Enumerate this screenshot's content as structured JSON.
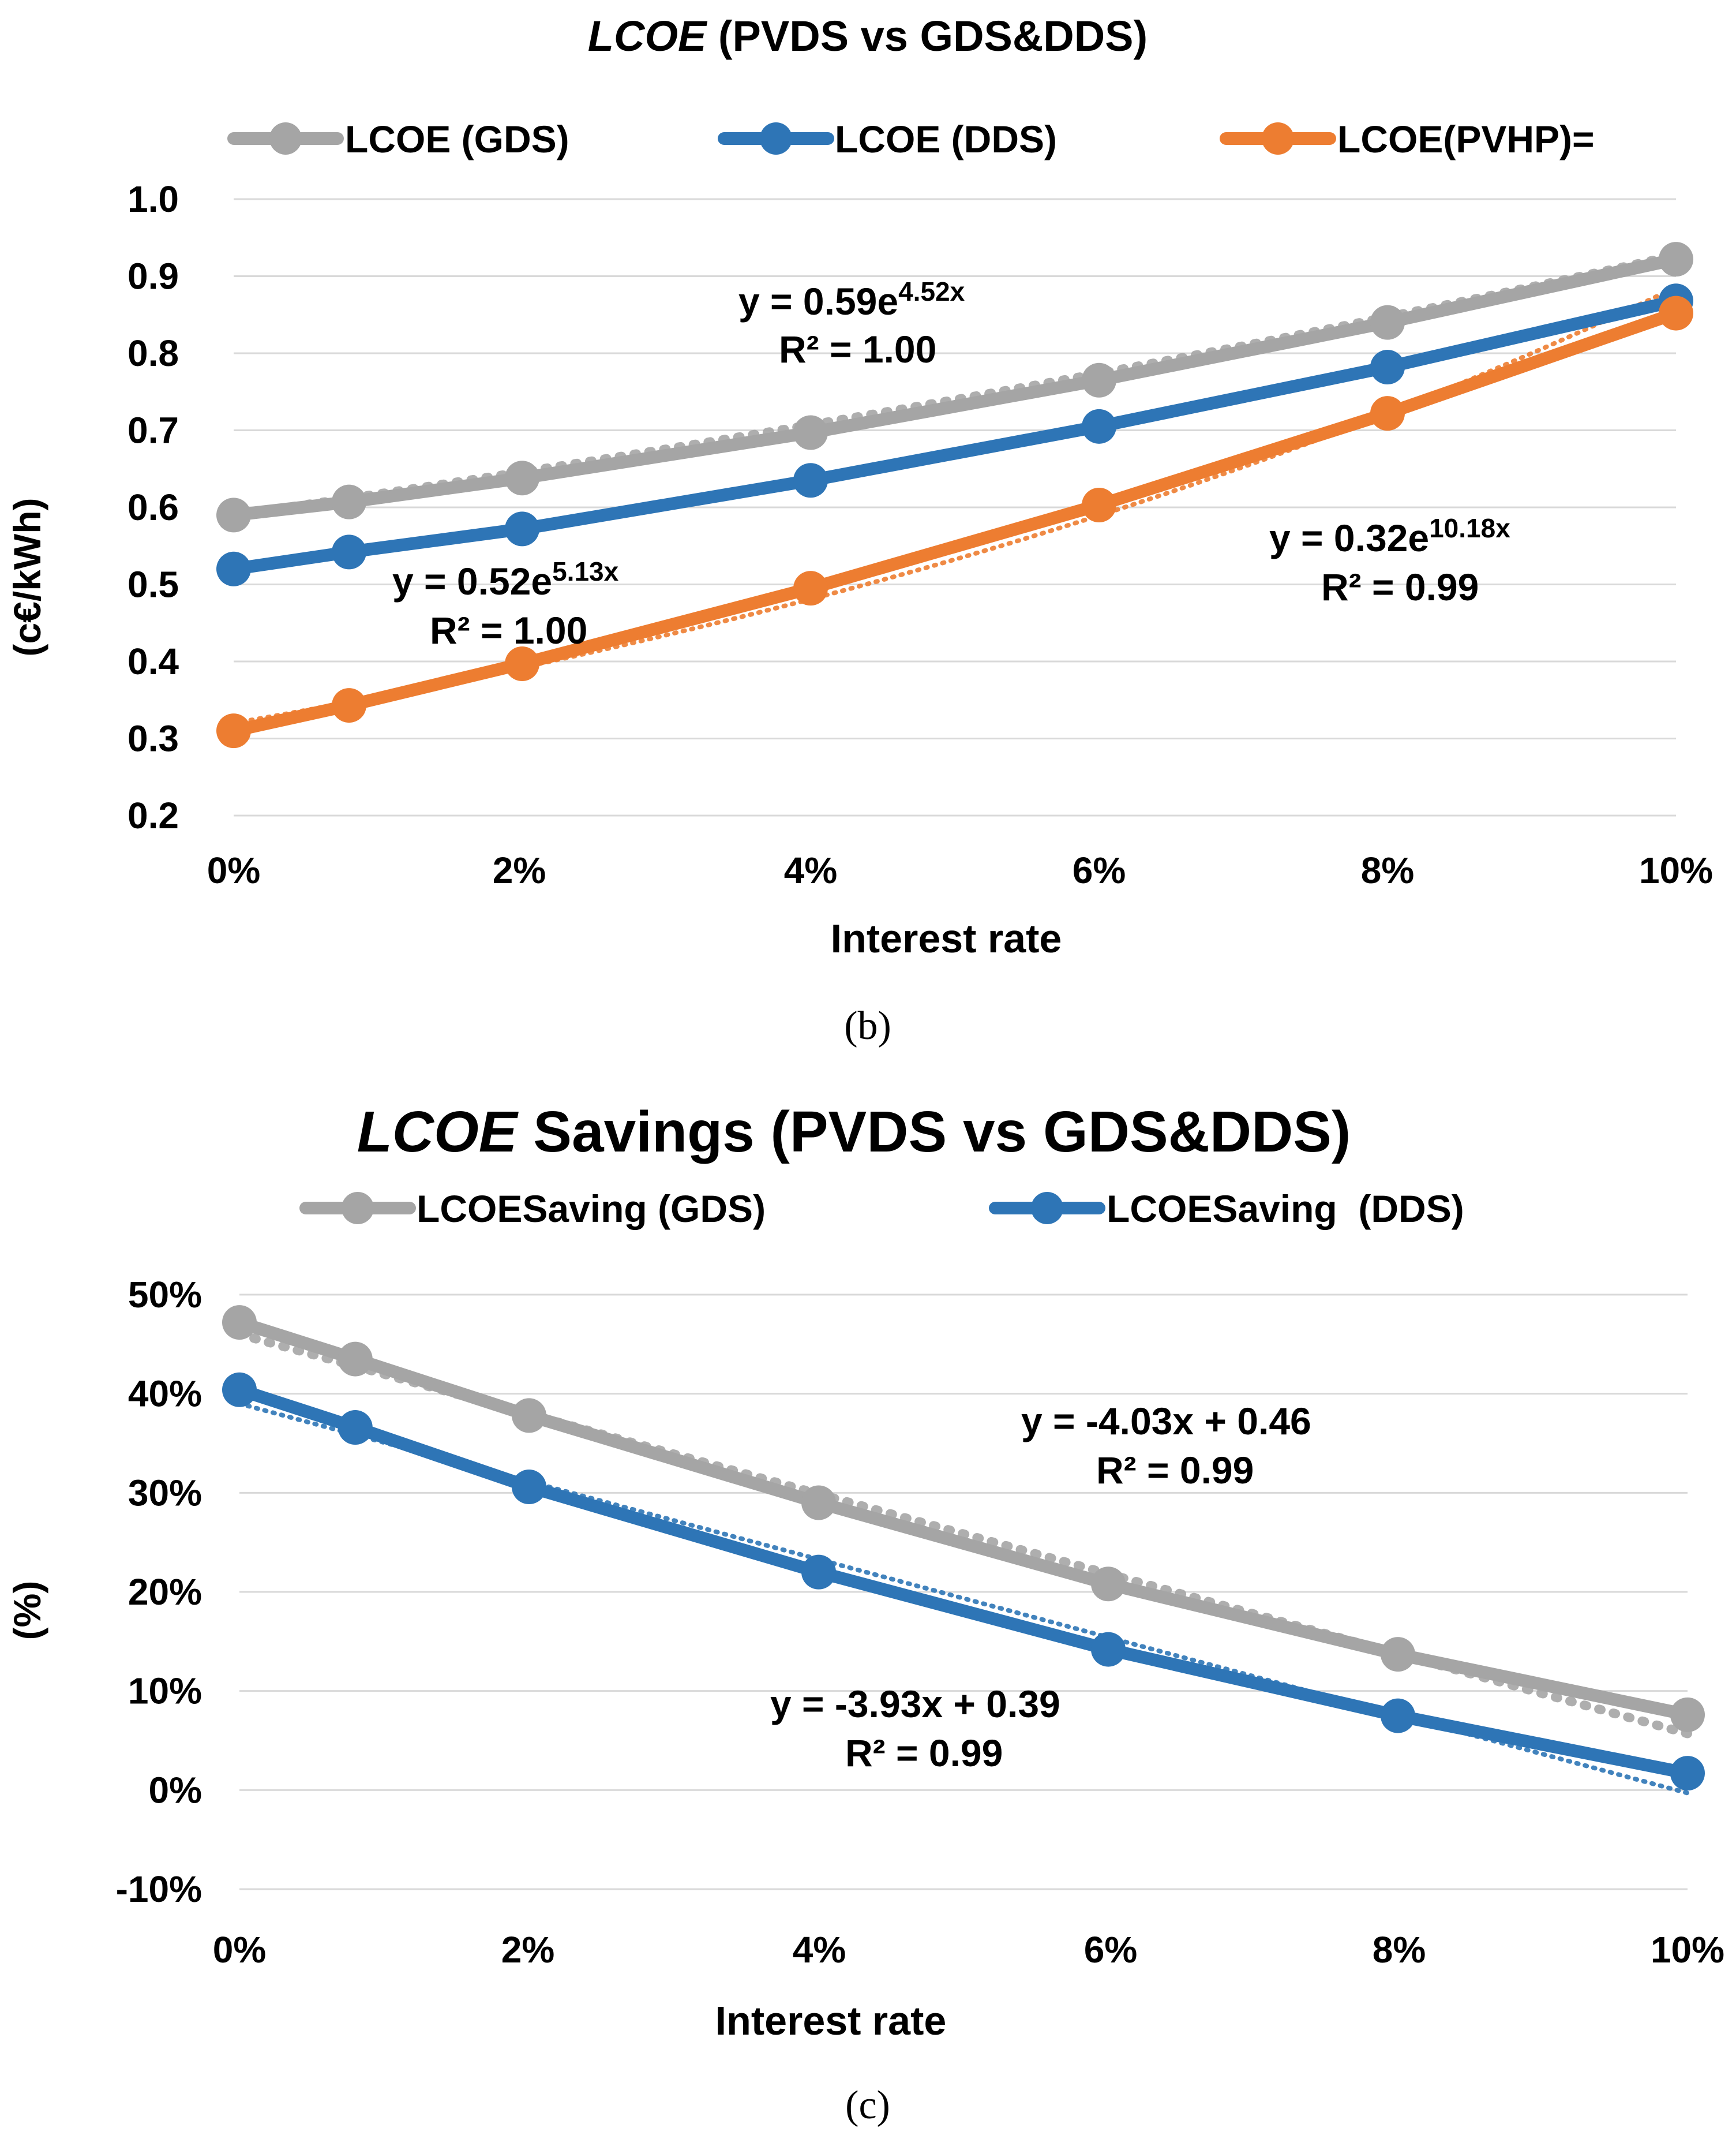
{
  "colors": {
    "gray": "#a5a5a5",
    "blue": "#2e75b6",
    "orange": "#ed7d31",
    "grid": "#d9d9d9",
    "text": "#000000"
  },
  "captions": {
    "b": "(b)",
    "c": "(c)"
  },
  "chart_data": [
    {
      "type": "line",
      "title_italic": "LCOE",
      "title_rest": " (PVDS vs GDS&DDS)",
      "xlabel": "Interest rate",
      "ylabel": "(c€/kWh)",
      "x_ticks": [
        "0%",
        "2%",
        "4%",
        "6%",
        "8%",
        "10%"
      ],
      "y_ticks": [
        "1.0",
        "0.9",
        "0.8",
        "0.7",
        "0.6",
        "0.5",
        "0.4",
        "0.3",
        "0.2"
      ],
      "xlim": [
        0,
        0.1
      ],
      "ylim": [
        0.2,
        1.0
      ],
      "grid": true,
      "legend_position": "top",
      "series": [
        {
          "name": "LCOE (GDS)",
          "color": "#a5a5a5",
          "x": [
            0,
            0.008,
            0.02,
            0.04,
            0.06,
            0.08,
            0.1
          ],
          "values": [
            0.59,
            0.607,
            0.638,
            0.697,
            0.765,
            0.84,
            0.922
          ],
          "trendline": {
            "type": "exponential",
            "a": 0.59,
            "b": 4.52
          },
          "equation": {
            "pre": "y = 0.59e",
            "sup": "4.52x",
            "r2": "R² = 1.00"
          }
        },
        {
          "name": "LCOE (DDS)",
          "color": "#2e75b6",
          "x": [
            0,
            0.008,
            0.02,
            0.04,
            0.06,
            0.08,
            0.1
          ],
          "values": [
            0.52,
            0.542,
            0.572,
            0.635,
            0.705,
            0.782,
            0.868
          ],
          "trendline": {
            "type": "exponential",
            "a": 0.52,
            "b": 5.13
          },
          "equation": {
            "pre": "y = 0.52e",
            "sup": "5.13x",
            "r2": "R² = 1.00"
          }
        },
        {
          "name": "LCOE(PVHP)=",
          "color": "#ed7d31",
          "x": [
            0,
            0.008,
            0.02,
            0.04,
            0.06,
            0.08,
            0.1
          ],
          "values": [
            0.31,
            0.343,
            0.397,
            0.495,
            0.603,
            0.722,
            0.852
          ],
          "trendline": {
            "type": "exponential",
            "a": 0.32,
            "b": 10.18
          },
          "equation": {
            "pre": "y = 0.32e",
            "sup": "10.18x",
            "r2": "R² = 0.99"
          }
        }
      ]
    },
    {
      "type": "line",
      "title_italic": "LCOE",
      "title_rest": " Savings (PVDS vs GDS&DDS)",
      "xlabel": "Interest rate",
      "ylabel": "(%)",
      "x_ticks": [
        "0%",
        "2%",
        "4%",
        "6%",
        "8%",
        "10%"
      ],
      "y_ticks": [
        "50%",
        "40%",
        "30%",
        "20%",
        "10%",
        "0%",
        "-10%"
      ],
      "xlim": [
        0,
        0.1
      ],
      "ylim": [
        -0.1,
        0.5
      ],
      "grid": true,
      "legend_position": "top",
      "series": [
        {
          "name": "LCOESaving (GDS)",
          "color": "#a5a5a5",
          "x": [
            0,
            0.008,
            0.02,
            0.04,
            0.06,
            0.08,
            0.1
          ],
          "values": [
            0.472,
            0.435,
            0.378,
            0.29,
            0.208,
            0.137,
            0.076
          ],
          "trendline": {
            "type": "linear",
            "m": -4.03,
            "c": 0.46
          },
          "equation": {
            "pre": "y = -4.03x + 0.46",
            "sup": "",
            "r2": "R² = 0.99"
          }
        },
        {
          "name": "LCOESaving  (DDS)",
          "color": "#2e75b6",
          "x": [
            0,
            0.008,
            0.02,
            0.04,
            0.06,
            0.08,
            0.1
          ],
          "values": [
            0.404,
            0.366,
            0.306,
            0.22,
            0.142,
            0.075,
            0.017
          ],
          "trendline": {
            "type": "linear",
            "m": -3.93,
            "c": 0.39
          },
          "equation": {
            "pre": "y = -3.93x + 0.39",
            "sup": "",
            "r2": "R² = 0.99"
          }
        }
      ]
    }
  ]
}
